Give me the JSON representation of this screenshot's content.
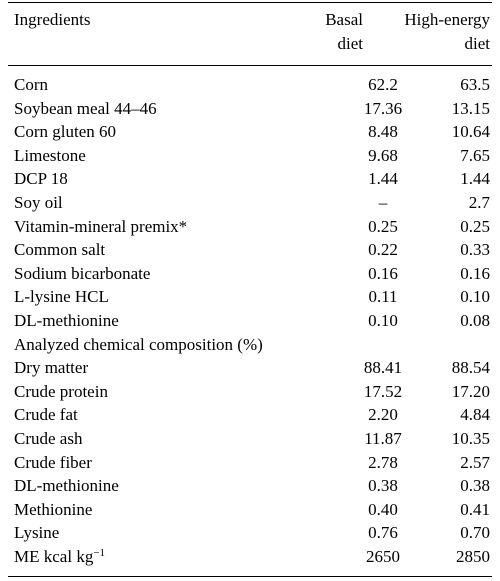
{
  "header": {
    "ingredients": "Ingredients",
    "basal_line1": "Basal",
    "basal_line2": "diet",
    "high_line1": "High-energy",
    "high_line2": "diet"
  },
  "rows": [
    {
      "name": "Corn",
      "basal": "62.2",
      "high": "63.5"
    },
    {
      "name": "Soybean meal 44–46",
      "basal": "17.36",
      "high": "13.15"
    },
    {
      "name": "Corn gluten 60",
      "basal": "8.48",
      "high": "10.64"
    },
    {
      "name": "Limestone",
      "basal": "9.68",
      "high": "7.65"
    },
    {
      "name": "DCP 18",
      "basal": "1.44",
      "high": "1.44"
    },
    {
      "name": "Soy oil",
      "basal": "–",
      "high": "2.7"
    },
    {
      "name": "Vitamin-mineral premix*",
      "basal": "0.25",
      "high": "0.25"
    },
    {
      "name": "Common salt",
      "basal": "0.22",
      "high": "0.33"
    },
    {
      "name": "Sodium bicarbonate",
      "basal": "0.16",
      "high": "0.16"
    },
    {
      "name": "L-lysine HCL",
      "basal": "0.11",
      "high": "0.10"
    },
    {
      "name": "DL-methionine",
      "basal": "0.10",
      "high": "0.08"
    },
    {
      "name": "Analyzed chemical composition (%)",
      "basal": "",
      "high": ""
    },
    {
      "name": "Dry matter",
      "basal": "88.41",
      "high": "88.54"
    },
    {
      "name": "Crude protein",
      "basal": "17.52",
      "high": "17.20"
    },
    {
      "name": "Crude fat",
      "basal": "2.20",
      "high": "4.84"
    },
    {
      "name": "Crude ash",
      "basal": "11.87",
      "high": "10.35"
    },
    {
      "name": "Crude fiber",
      "basal": "2.78",
      "high": "2.57"
    },
    {
      "name": "DL-methionine",
      "basal": "0.38",
      "high": "0.38"
    },
    {
      "name": "Methionine",
      "basal": "0.40",
      "high": "0.41"
    },
    {
      "name": "Lysine",
      "basal": "0.76",
      "high": "0.70"
    }
  ],
  "last_row": {
    "name_main": "ME kcal kg",
    "name_sup": "−1",
    "basal": "2650",
    "high": "2850"
  }
}
